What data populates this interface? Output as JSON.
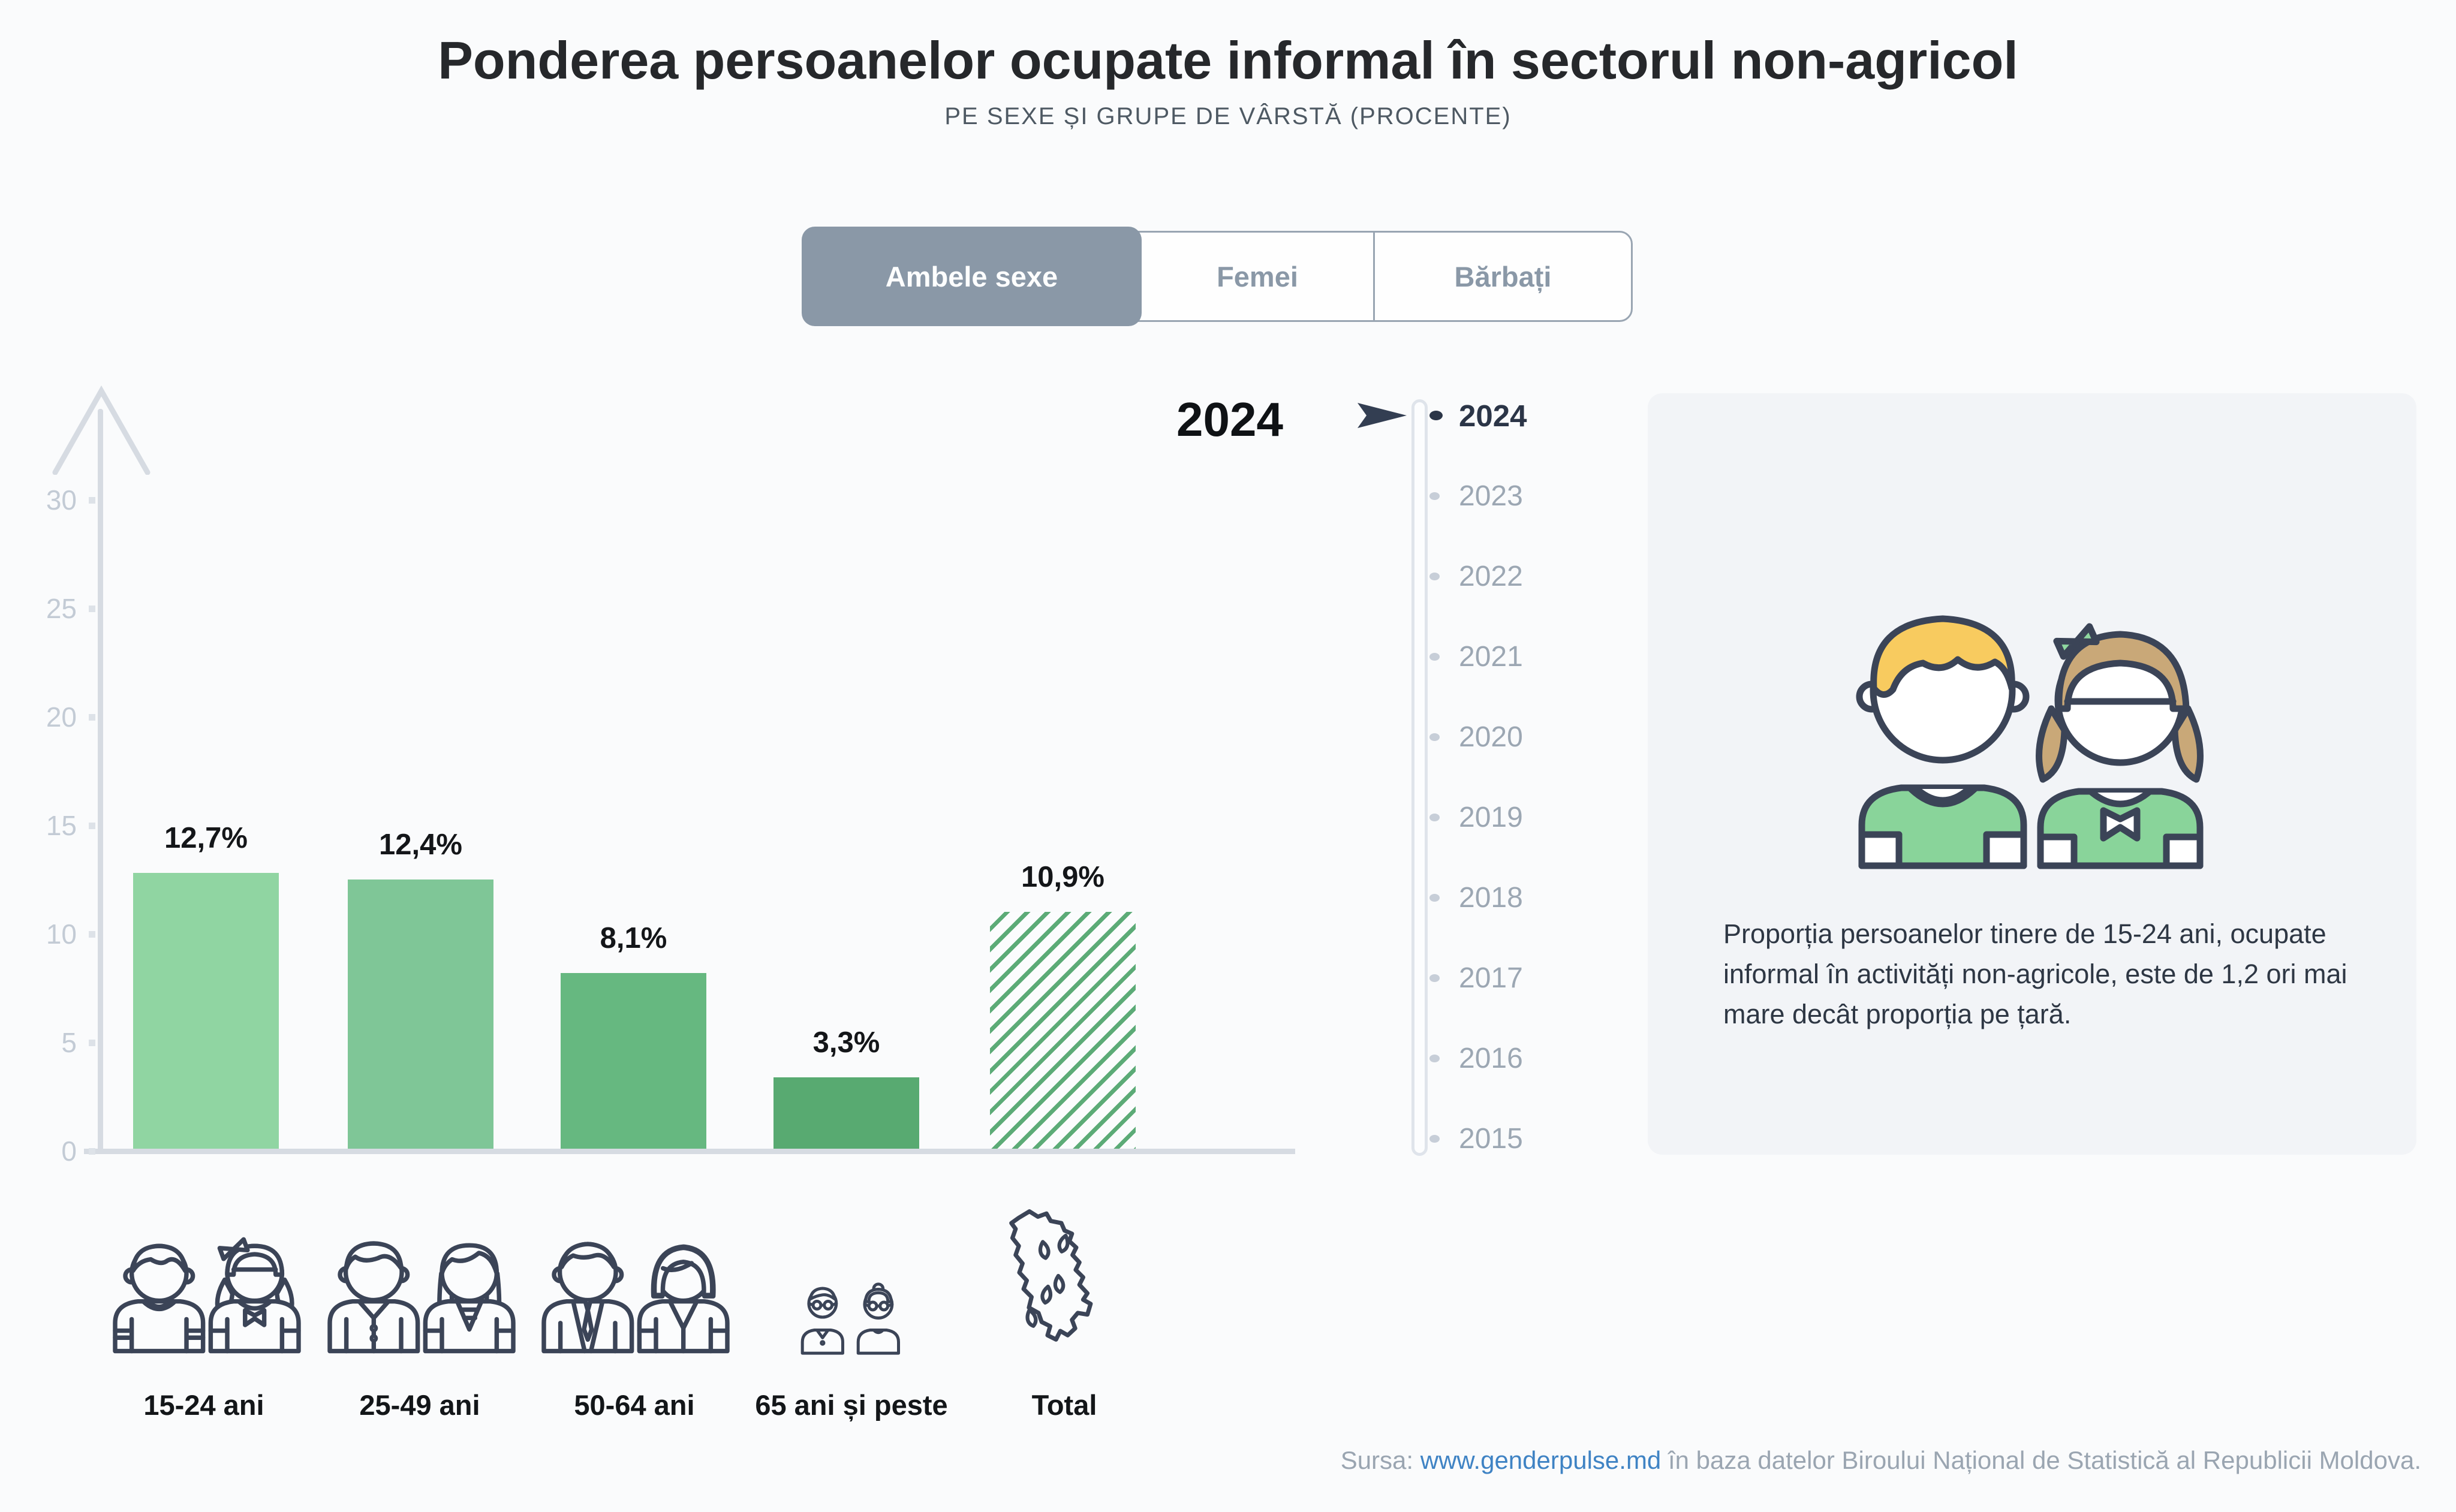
{
  "header": {
    "title": "Ponderea persoanelor ocupate informal în sectorul non-agricol",
    "subtitle": "PE SEXE ȘI GRUPE DE VÂRSTĂ (PROCENTE)"
  },
  "tabs": [
    "Ambele sexe",
    "Femei",
    "Bărbați"
  ],
  "selected_tab": "Ambele sexe",
  "big_year": "2024",
  "chart_data": {
    "type": "bar",
    "title": "Ponderea persoanelor ocupate informal în sectorul non-agricol",
    "categories": [
      "15-24 ani",
      "25-49 ani",
      "50-64 ani",
      "65 ani și peste",
      "Total"
    ],
    "values": [
      12.7,
      12.4,
      8.1,
      3.3,
      10.9
    ],
    "value_labels": [
      "12,7%",
      "12,4%",
      "8,1%",
      "3,3%",
      "10,9%"
    ],
    "yticks": [
      "30",
      "25",
      "20",
      "15",
      "10",
      "5",
      "0"
    ],
    "ylim": [
      0,
      30
    ],
    "xlabel": "",
    "ylabel": "",
    "grid": false,
    "legend_position": "none",
    "bar_colors": [
      "#90d5a2",
      "#7fc697",
      "#66b880",
      "#58aa71",
      "hatch"
    ],
    "hatch_colors": [
      "#5cab77",
      "#fbfcfd"
    ],
    "axis_color": "#d6dbe2",
    "tick_label_color": "#c3cbd5"
  },
  "timeline": {
    "years": [
      "2024",
      "2023",
      "2022",
      "2021",
      "2020",
      "2019",
      "2018",
      "2017",
      "2016",
      "2015"
    ],
    "selected_year": "2024"
  },
  "info_card": {
    "text": "Proporția persoanelor tinere de 15-24 ani, ocupate informal în activități non-agricole, este de 1,2 ori mai mare decât proporția pe țară."
  },
  "footer": {
    "prefix": "Sursa: ",
    "link": "www.genderpulse.md",
    "suffix": " în baza datelor Biroului Național de Statistică al Republicii Moldova."
  },
  "icons": {
    "timeline_cursor": "year-cursor-arrow-icon",
    "age_group_icons": [
      "teen-boy-girl-icon",
      "adult-man-woman-icon",
      "senior-man-woman-icon",
      "elderly-couple-icon",
      "moldova-map-icon"
    ],
    "card_illustration": "boy-and-girl-illustration"
  }
}
